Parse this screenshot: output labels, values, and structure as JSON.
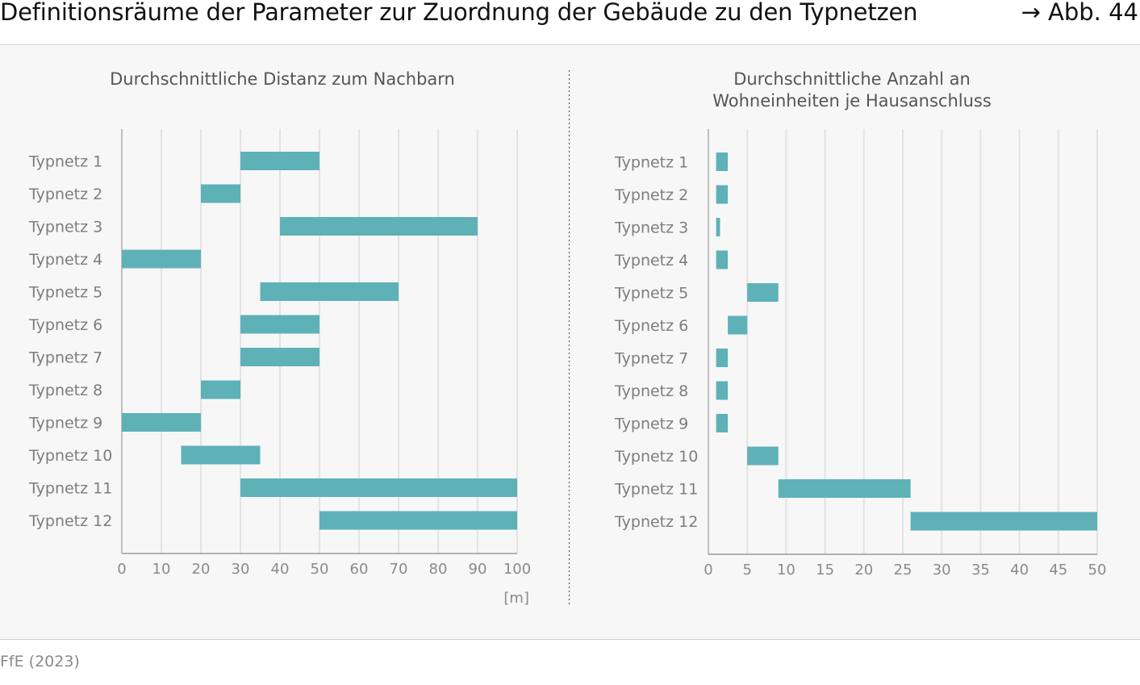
{
  "header": {
    "title": "Definitionsräume der Parameter zur Zuordnung der Gebäude zu den Typnetzen",
    "figure_ref": "→ Abb. 44"
  },
  "footer": {
    "source": "FfE (2023)"
  },
  "colors": {
    "bar": "#5fb1b8",
    "grid": "#e3e3e3",
    "axis": "#9a9a9a",
    "divider": "#666666",
    "panel_bg": "#f7f7f7"
  },
  "chart_data": [
    {
      "type": "bar",
      "orientation": "horizontal",
      "style": "range",
      "title_lines": [
        "Durchschnittliche Distanz zum Nachbarn"
      ],
      "categories": [
        "Typnetz 1",
        "Typnetz 2",
        "Typnetz 3",
        "Typnetz 4",
        "Typnetz 5",
        "Typnetz 6",
        "Typnetz 7",
        "Typnetz 8",
        "Typnetz 9",
        "Typnetz 10",
        "Typnetz 11",
        "Typnetz 12"
      ],
      "ranges": [
        [
          30,
          50
        ],
        [
          20,
          30
        ],
        [
          40,
          90
        ],
        [
          0,
          20
        ],
        [
          35,
          70
        ],
        [
          30,
          50
        ],
        [
          30,
          50
        ],
        [
          20,
          30
        ],
        [
          0,
          20
        ],
        [
          15,
          35
        ],
        [
          30,
          100
        ],
        [
          50,
          100
        ]
      ],
      "xlim": [
        0,
        100
      ],
      "xticks": [
        0,
        10,
        20,
        30,
        40,
        50,
        60,
        70,
        80,
        90,
        100
      ],
      "xunit": "[m]",
      "grid": true
    },
    {
      "type": "bar",
      "orientation": "horizontal",
      "style": "range",
      "title_lines": [
        "Durchschnittliche Anzahl an",
        "Wohneinheiten je Hausanschluss"
      ],
      "categories": [
        "Typnetz 1",
        "Typnetz 2",
        "Typnetz 3",
        "Typnetz 4",
        "Typnetz 5",
        "Typnetz 6",
        "Typnetz 7",
        "Typnetz 8",
        "Typnetz 9",
        "Typnetz 10",
        "Typnetz 11",
        "Typnetz 12"
      ],
      "ranges": [
        [
          1,
          2.5
        ],
        [
          1,
          2.5
        ],
        [
          1,
          1.5
        ],
        [
          1,
          2.5
        ],
        [
          5,
          9
        ],
        [
          2.5,
          5
        ],
        [
          1,
          2.5
        ],
        [
          1,
          2.5
        ],
        [
          1,
          2.5
        ],
        [
          5,
          9
        ],
        [
          9,
          26
        ],
        [
          26,
          50
        ]
      ],
      "xlim": [
        0,
        50
      ],
      "xticks": [
        0,
        5,
        10,
        15,
        20,
        25,
        30,
        35,
        40,
        45,
        50
      ],
      "xunit": "",
      "grid": true
    }
  ]
}
